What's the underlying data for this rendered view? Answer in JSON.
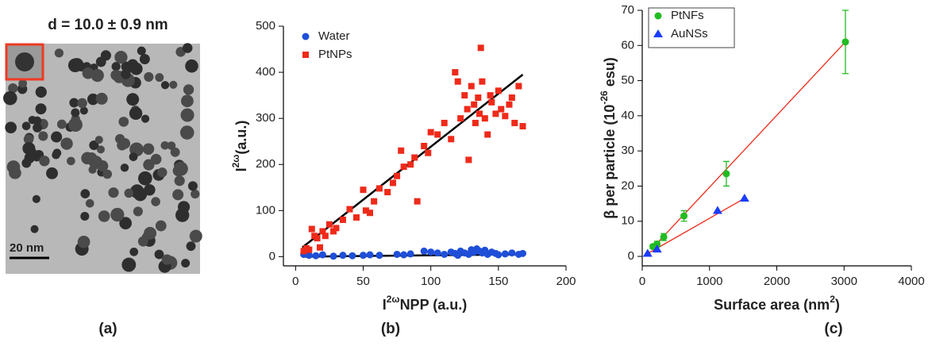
{
  "image": {
    "title": "d = 10.0 ± 0.9 nm",
    "scale_bar": "20 nm",
    "panel_label": "(a)"
  },
  "chart_data": [
    {
      "type": "scatter",
      "panel_label": "(b)",
      "xlabel": [
        {
          "text": "I"
        },
        {
          "text": "2ω",
          "sup": true
        },
        {
          "text": "NPP (a.u.)"
        }
      ],
      "ylabel": [
        {
          "text": "I"
        },
        {
          "text": "2ω",
          "sup": true
        },
        {
          "text": "(a.u.)"
        }
      ],
      "xlim": [
        -9,
        200
      ],
      "xticks": [
        0,
        50,
        100,
        150,
        200
      ],
      "ylim": [
        -20,
        500
      ],
      "yticks": [
        0,
        100,
        200,
        300,
        400,
        500
      ],
      "legend": "top-left",
      "series": [
        {
          "name": "Water",
          "color": "#1f4fd8",
          "marker": "circle",
          "x": [
            6,
            10,
            15,
            20,
            28,
            35,
            42,
            50,
            55,
            62,
            75,
            80,
            85,
            95,
            100,
            105,
            110,
            115,
            118,
            120,
            122,
            125,
            128,
            130,
            132,
            134,
            136,
            138,
            140,
            142,
            145,
            148,
            150,
            155,
            160,
            165,
            168
          ],
          "values": [
            5,
            3,
            2,
            4,
            1,
            3,
            2,
            3,
            4,
            3,
            5,
            4,
            6,
            12,
            10,
            8,
            5,
            10,
            7,
            3,
            12,
            8,
            5,
            15,
            10,
            17,
            12,
            8,
            14,
            5,
            10,
            7,
            4,
            6,
            8,
            5,
            7
          ]
        },
        {
          "name": "PtNPs",
          "color": "#ee2a1a",
          "marker": "square",
          "x": [
            6,
            8,
            10,
            12,
            14,
            16,
            18,
            20,
            22,
            25,
            28,
            30,
            35,
            40,
            45,
            50,
            52,
            55,
            58,
            62,
            68,
            72,
            75,
            78,
            80,
            85,
            88,
            90,
            95,
            98,
            100,
            105,
            110,
            115,
            118,
            120,
            122,
            125,
            127,
            128,
            130,
            132,
            133,
            135,
            136,
            137,
            138,
            140,
            142,
            144,
            145,
            148,
            150,
            152,
            155,
            158,
            160,
            162,
            165,
            168
          ],
          "values": [
            12,
            18,
            15,
            60,
            45,
            40,
            20,
            55,
            45,
            70,
            55,
            62,
            80,
            103,
            85,
            145,
            100,
            95,
            120,
            148,
            140,
            160,
            175,
            230,
            195,
            200,
            215,
            120,
            240,
            225,
            270,
            265,
            290,
            255,
            400,
            380,
            300,
            350,
            320,
            210,
            370,
            330,
            290,
            345,
            310,
            453,
            380,
            300,
            265,
            350,
            335,
            310,
            360,
            320,
            305,
            330,
            345,
            290,
            370,
            283
          ]
        }
      ],
      "lines": [
        {
          "color": "#000000",
          "x": [
            5,
            168
          ],
          "values": [
            20,
            395
          ]
        },
        {
          "color": "#000000",
          "x": [
            5,
            168
          ],
          "values": [
            0,
            5
          ]
        }
      ]
    },
    {
      "type": "scatter",
      "panel_label": "(c)",
      "xlabel": [
        {
          "text": "Surface area (nm"
        },
        {
          "text": "2",
          "sup": true
        },
        {
          "text": ")"
        }
      ],
      "ylabel": [
        {
          "text": "β per particle (10"
        },
        {
          "text": "-26",
          "sup": true
        },
        {
          "text": " esu)"
        }
      ],
      "xlim": [
        0,
        4000
      ],
      "xticks": [
        0,
        1000,
        2000,
        3000,
        4000
      ],
      "ylim": [
        -2.7,
        70
      ],
      "yticks": [
        0,
        10,
        20,
        30,
        40,
        50,
        60,
        70
      ],
      "legend": "top-left",
      "series": [
        {
          "name": "PtNFs",
          "color": "#22bb22",
          "marker": "circle",
          "x": [
            160,
            220,
            320,
            620,
            1250,
            3020
          ],
          "values": [
            2.8,
            3.5,
            5.5,
            11.5,
            23.5,
            61
          ],
          "errors": [
            0.6,
            0.8,
            1,
            1.5,
            3.5,
            9
          ]
        },
        {
          "name": "AuNSs",
          "color": "#1a3cff",
          "marker": "triangle",
          "x": [
            80,
            220,
            1120,
            1520
          ],
          "values": [
            0.8,
            2,
            13,
            16.5
          ]
        }
      ],
      "lines": [
        {
          "color": "#ee2a1a",
          "x": [
            160,
            3020
          ],
          "values": [
            2.5,
            61
          ]
        },
        {
          "color": "#ee2a1a",
          "x": [
            80,
            1520
          ],
          "values": [
            0.8,
            16.5
          ]
        }
      ]
    }
  ]
}
